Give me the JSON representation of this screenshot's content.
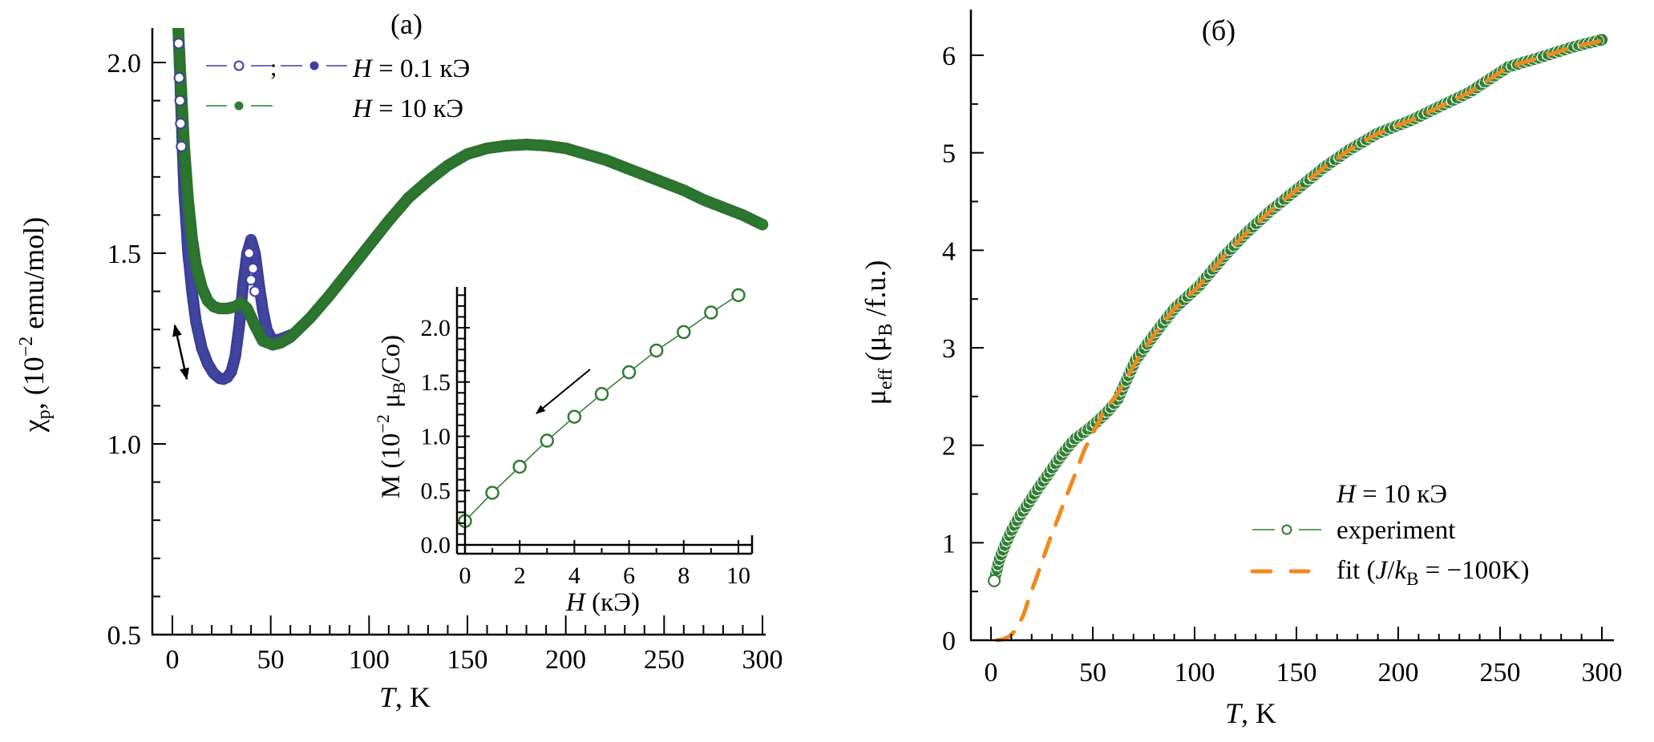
{
  "chart_data": [
    {
      "id": "a",
      "type": "scatter",
      "panel_label": "(a)",
      "xlabel_italic": "T",
      "xlabel_rest": ", K",
      "ylabel": "χp, (10⁻² emu/mol)",
      "ylabel_parts": {
        "chi": "χ",
        "sub": "p",
        "rest1": ", (10",
        "sup": "−2",
        "rest2": " emu/mol)"
      },
      "xlim": [
        -5,
        303
      ],
      "ylim": [
        0.5,
        2.09
      ],
      "xticks": [
        0,
        50,
        100,
        150,
        200,
        250,
        300
      ],
      "xtick_labels": [
        "0",
        "50",
        "100",
        "150",
        "200",
        "250",
        "300"
      ],
      "xminor_step": 10,
      "yticks": [
        0.5,
        1.0,
        1.5,
        2.0
      ],
      "ytick_labels": [
        "0.5",
        "1.0",
        "1.5",
        "2.0"
      ],
      "yminor_step": 0.1,
      "legend": {
        "placement": "top-left",
        "entries": [
          {
            "label_italic": "H",
            "label_rest": " = 0.1 кЭ",
            "separator": ";",
            "markers": [
              "open-circle",
              "filled-circle"
            ],
            "color": "#3f3fa0"
          },
          {
            "label_italic": "H",
            "label_rest": " = 10 кЭ",
            "markers": [
              "filled-circle"
            ],
            "color": "#2e7d32"
          }
        ]
      },
      "annotations": [
        "double-arrow near 25 K (hysteresis)",
        "arrow in inset pointing toward decreasing H"
      ],
      "series": [
        {
          "name": "H = 0.1 кЭ",
          "color": "#3f3fa0",
          "x": [
            3,
            4,
            5,
            6,
            8,
            10,
            12,
            15,
            18,
            21,
            24,
            26,
            28,
            30,
            32,
            34,
            36,
            38,
            40,
            42,
            44,
            46,
            48,
            51,
            55,
            60
          ],
          "y": [
            2.09,
            1.95,
            1.8,
            1.66,
            1.5,
            1.4,
            1.32,
            1.25,
            1.21,
            1.185,
            1.172,
            1.17,
            1.175,
            1.19,
            1.23,
            1.31,
            1.42,
            1.5,
            1.535,
            1.5,
            1.42,
            1.35,
            1.3,
            1.27,
            1.275,
            1.285
          ]
        },
        {
          "name": "H = 10 кЭ",
          "color": "#2e7d32",
          "x": [
            3,
            4,
            5,
            6,
            8,
            10,
            12,
            15,
            18,
            21,
            24,
            28,
            32,
            35,
            38,
            42,
            46,
            51,
            55,
            60,
            70,
            80,
            90,
            100,
            110,
            120,
            130,
            140,
            150,
            160,
            170,
            180,
            190,
            200,
            210,
            220,
            230,
            240,
            250,
            260,
            270,
            280,
            290,
            300
          ],
          "y": [
            2.09,
            1.98,
            1.88,
            1.78,
            1.64,
            1.54,
            1.47,
            1.41,
            1.375,
            1.36,
            1.355,
            1.355,
            1.36,
            1.37,
            1.355,
            1.31,
            1.27,
            1.26,
            1.265,
            1.28,
            1.33,
            1.39,
            1.455,
            1.52,
            1.585,
            1.645,
            1.69,
            1.73,
            1.76,
            1.775,
            1.782,
            1.785,
            1.782,
            1.775,
            1.76,
            1.745,
            1.725,
            1.705,
            1.685,
            1.665,
            1.64,
            1.62,
            1.6,
            1.575
          ]
        }
      ],
      "inset": {
        "type": "line",
        "xlabel_italic": "H",
        "xlabel_rest": " (кЭ)",
        "ylabel_parts": {
          "pre": "M (10",
          "sup": "−2",
          "mid": " μ",
          "sub": "B",
          "post": "/Co)"
        },
        "xlim": [
          -0.3,
          10.8
        ],
        "ylim": [
          -0.05,
          2.35
        ],
        "xticks": [
          0,
          2,
          4,
          6,
          8,
          10
        ],
        "xtick_labels": [
          "0",
          "2",
          "4",
          "6",
          "8",
          "10"
        ],
        "yticks": [
          0.0,
          0.5,
          1.0,
          1.5,
          2.0
        ],
        "ytick_labels": [
          "0.0",
          "0.5",
          "1.0",
          "1.5",
          "2.0"
        ],
        "series": [
          {
            "name": "M(H)",
            "color": "#2e7d32",
            "marker": "open-circle",
            "x": [
              0,
              1,
              2,
              3,
              4,
              5,
              6,
              7,
              8,
              9,
              10
            ],
            "y": [
              0.22,
              0.48,
              0.72,
              0.96,
              1.18,
              1.39,
              1.59,
              1.79,
              1.96,
              2.14,
              2.3
            ]
          }
        ]
      }
    },
    {
      "id": "b",
      "type": "scatter",
      "panel_label": "(б)",
      "xlabel_italic": "T",
      "xlabel_rest": ", K",
      "ylabel_parts": {
        "mu": "μ",
        "sub": "eff",
        "rest1": " (μ",
        "sub2": "B",
        "rest2": " /f.u.)"
      },
      "xlim": [
        -10,
        305
      ],
      "ylim": [
        0,
        6.47
      ],
      "xticks": [
        0,
        50,
        100,
        150,
        200,
        250,
        300
      ],
      "xtick_labels": [
        "0",
        "50",
        "100",
        "150",
        "200",
        "250",
        "300"
      ],
      "xminor_step": 10,
      "yticks": [
        0,
        1,
        2,
        3,
        4,
        5,
        6
      ],
      "ytick_labels": [
        "0",
        "1",
        "2",
        "3",
        "4",
        "5",
        "6"
      ],
      "yminor_step": 0.5,
      "legend": {
        "placement": "bottom-right",
        "title_italic": "H",
        "title_rest": " = 10 кЭ",
        "entries": [
          {
            "label": "experiment",
            "style": "open-circle-line",
            "color": "#2e7d32"
          },
          {
            "label_pre": "fit (",
            "label_italic1": "J",
            "label_mid": "/",
            "label_italic2": "k",
            "label_sub": "B",
            "label_post": " = −100K)",
            "style": "dashed",
            "color": "#f08a1c"
          }
        ]
      },
      "series": [
        {
          "name": "experiment",
          "color": "#2e7d32",
          "x": [
            1.6,
            4,
            7,
            10,
            14,
            17,
            21,
            25,
            29,
            33,
            37,
            41,
            45,
            48,
            52,
            57,
            62,
            71,
            80,
            90,
            102,
            115,
            125,
            137,
            150,
            163,
            176,
            190,
            206,
            220,
            235,
            254,
            270,
            285,
            300
          ],
          "y": [
            0.61,
            0.82,
            0.98,
            1.12,
            1.27,
            1.36,
            1.49,
            1.61,
            1.73,
            1.85,
            1.96,
            2.06,
            2.12,
            2.17,
            2.24,
            2.34,
            2.46,
            2.87,
            3.13,
            3.4,
            3.63,
            3.95,
            4.17,
            4.4,
            4.62,
            4.84,
            5.03,
            5.2,
            5.33,
            5.47,
            5.62,
            5.88,
            5.98,
            6.08,
            6.16
          ]
        },
        {
          "name": "fit (J/kB = -100K)",
          "color": "#f08a1c",
          "x": [
            3,
            6,
            9,
            12,
            16,
            19,
            22.5,
            26,
            29,
            32,
            36,
            39,
            42,
            46,
            50,
            55.5,
            62,
            71,
            80,
            90,
            102,
            115,
            125,
            137,
            150,
            163,
            176,
            190,
            206,
            220,
            235,
            254,
            270,
            285,
            300
          ],
          "y": [
            0.0,
            0.01,
            0.04,
            0.1,
            0.26,
            0.45,
            0.65,
            0.86,
            1.04,
            1.2,
            1.42,
            1.58,
            1.74,
            1.96,
            2.12,
            2.35,
            2.52,
            2.85,
            3.13,
            3.4,
            3.63,
            3.95,
            4.17,
            4.4,
            4.62,
            4.84,
            5.03,
            5.2,
            5.33,
            5.47,
            5.62,
            5.88,
            5.98,
            6.08,
            6.15
          ]
        }
      ]
    }
  ]
}
